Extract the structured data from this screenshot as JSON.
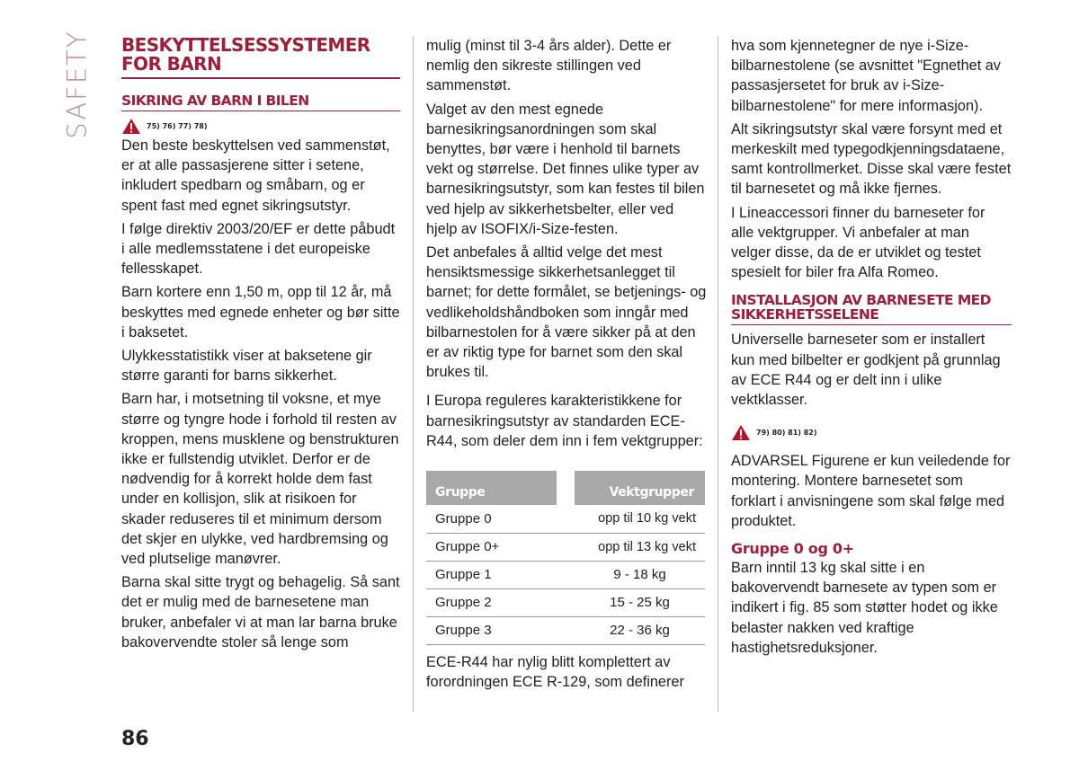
{
  "side_label": "SAFETY",
  "page_number": "86",
  "col1": {
    "title": "BESKYTTELSESSYSTEMER FOR BARN",
    "subtitle": "SIKRING AV BARN I BILEN",
    "warning_refs": "75) 76) 77) 78)",
    "paragraphs": [
      "Den beste beskyttelsen ved sammenstøt, er at alle passasjerene sitter i setene, inkludert spedbarn og småbarn, og er spent fast med egnet sikringsutstyr.",
      "I følge direktiv 2003/20/EF er dette påbudt i alle medlemsstatene i det europeiske fellesskapet.",
      "Barn kortere enn 1,50 m, opp til 12 år, må beskyttes med egnede enheter og bør sitte i baksetet.",
      "Ulykkesstatistikk viser at baksetene gir større garanti for barns sikkerhet.",
      "Barn har, i motsetning til voksne, et mye større og tyngre hode i forhold til resten av kroppen, mens musklene og benstrukturen ikke er fullstendig utviklet. Derfor er de nødvendig for å korrekt holde dem fast under en kollisjon, slik at risikoen for skader reduseres til et minimum dersom det skjer en ulykke, ved hardbremsing og ved plutselige manøvrer.",
      "Barna skal sitte trygt og behagelig. Så sant det er mulig med de barnesetene man bruker, anbefaler vi at man lar barna bruke bakovervendte stoler så lenge som"
    ]
  },
  "col2": {
    "paragraphs": [
      "mulig (minst til 3-4 års alder). Dette er nemlig den sikreste stillingen ved sammenstøt.",
      "Valget av den mest egnede barnesikringsanordningen som skal benyttes, bør være i henhold til barnets vekt og størrelse. Det finnes ulike typer av barnesikringsutstyr, som kan festes til bilen ved hjelp av sikkerhetsbelter, eller ved hjelp av ISOFIX/i-Size-festen.",
      "Det anbefales å alltid velge det mest hensiktsmessige sikkerhetsanlegget til barnet; for dette formålet, se betjenings- og vedlikeholdshåndboken som inngår med bilbarnestolen for å være sikker på at den er av riktig type for barnet som den skal brukes til.",
      "I Europa reguleres karakteristikkene for barnesikringsutstyr av standarden ECE-R44, som deler dem inn i fem vektgrupper:"
    ],
    "table": {
      "headers": [
        "Gruppe",
        "Vektgrupper"
      ],
      "rows": [
        [
          "Gruppe 0",
          "opp til 10 kg vekt"
        ],
        [
          "Gruppe 0+",
          "opp til 13 kg vekt"
        ],
        [
          "Gruppe 1",
          "9 - 18 kg"
        ],
        [
          "Gruppe 2",
          "15 - 25 kg"
        ],
        [
          "Gruppe 3",
          "22 - 36 kg"
        ]
      ]
    },
    "after_table": "ECE-R44 har nylig blitt komplettert av forordningen ECE R-129, som definerer"
  },
  "col3": {
    "paragraphs": [
      "hva som kjennetegner de nye i-Size-bilbarnestolene (se avsnittet \"Egnethet av passasjersetet for bruk av i-Size-bilbarnestolene\" for mere informasjon).",
      "Alt sikringsutstyr skal være forsynt med et merkeskilt med typegodkjenningsdataene, samt kontrollmerket. Disse skal være festet til barnesetet og må ikke fjernes.",
      "I Lineaccessori finner du barneseter for alle vektgrupper. Vi anbefaler at man velger disse, da de er utviklet og testet spesielt for biler fra Alfa Romeo."
    ],
    "subtitle": "INSTALLASJON AV BARNESETE MED SIKKERHETSSELENE",
    "install_text": "Universelle barneseter som er installert kun med bilbelter er godkjent på grunnlag av ECE R44 og er delt inn i ulike vektklasser.",
    "warning_refs": "79) 80) 81) 82)",
    "advarsel": "ADVARSEL Figurene er kun veiledende for montering. Montere barnesetet som forklart i anvisningene som skal følge med produktet.",
    "group_heading": "Gruppe 0 og 0+",
    "group_text": "Barn inntil 13 kg skal sitte i en bakovervendt barnesete av typen som er indikert i fig. 85 som støtter hodet og ikke belaster nakken ved kraftige hastighetsreduksjoner."
  }
}
